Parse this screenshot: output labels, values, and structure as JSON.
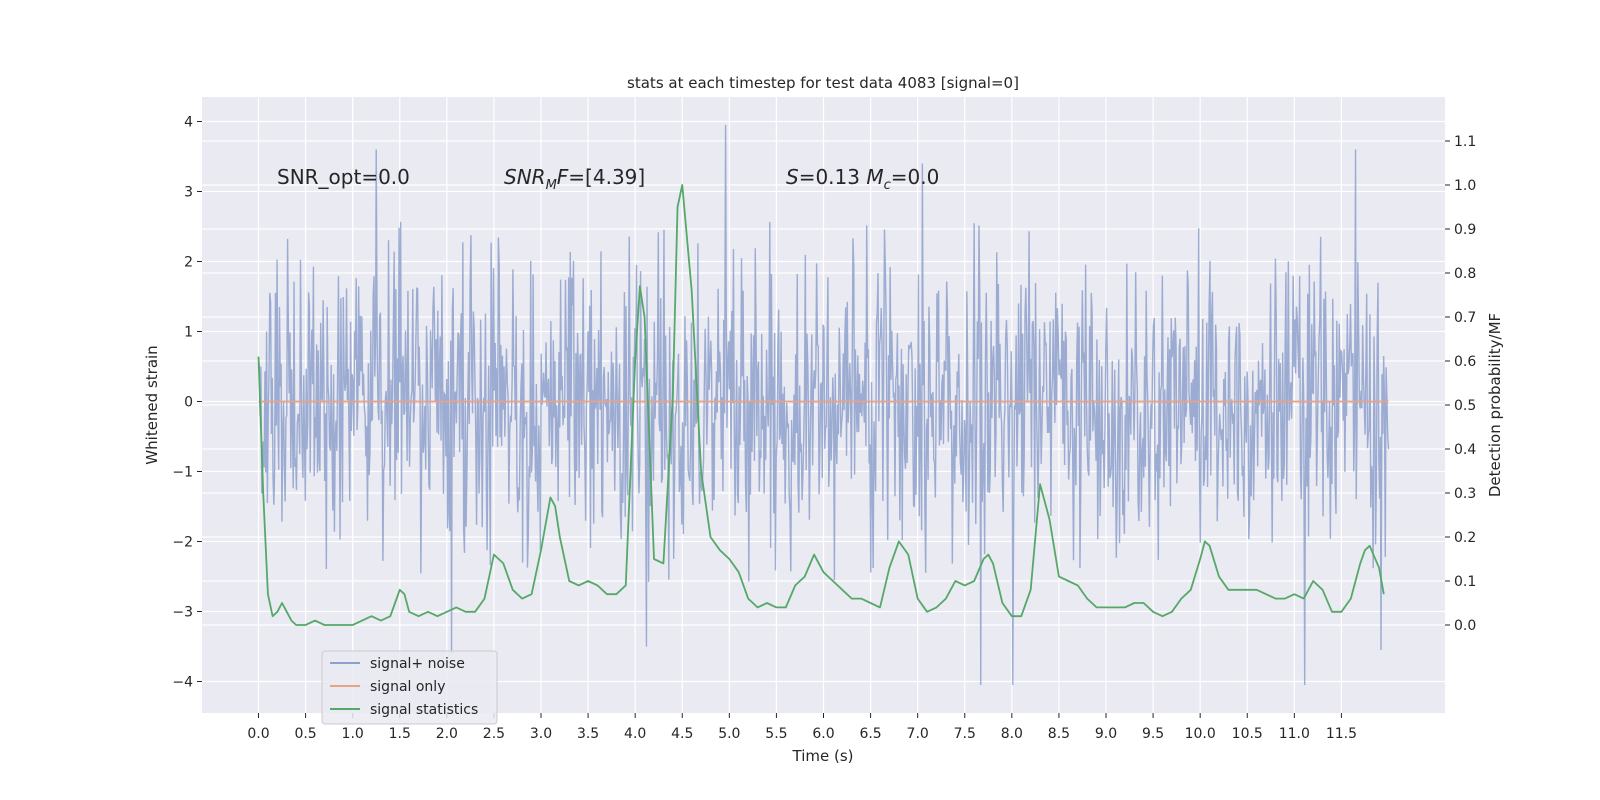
{
  "chart_data": {
    "type": "line",
    "title": "stats at each timestep for test data 4083 [signal=0]",
    "xlabel": "Time (s)",
    "ylabel_left": "Whitened strain",
    "ylabel_right": "Detection probability/MF",
    "xlim": [
      -0.6,
      12.6
    ],
    "ylim_left": [
      -4.45,
      4.35
    ],
    "ylim_right": [
      -0.2,
      1.2
    ],
    "x_ticks": [
      0.0,
      0.5,
      1.0,
      1.5,
      2.0,
      2.5,
      3.0,
      3.5,
      4.0,
      4.5,
      5.0,
      5.5,
      6.0,
      6.5,
      7.0,
      7.5,
      8.0,
      8.5,
      9.0,
      9.5,
      10.0,
      10.5,
      11.0,
      11.5
    ],
    "x_tick_labels": [
      "0.0",
      "0.5",
      "1.0",
      "1.5",
      "2.0",
      "2.5",
      "3.0",
      "3.5",
      "4.0",
      "4.5",
      "5.0",
      "5.5",
      "6.0",
      "6.5",
      "7.0",
      "7.5",
      "8.0",
      "8.5",
      "9.0",
      "9.5",
      "10.0",
      "10.5",
      "11.0",
      "11.5"
    ],
    "y_left_ticks": [
      -4,
      -3,
      -2,
      -1,
      0,
      1,
      2,
      3,
      4
    ],
    "y_left_tick_labels": [
      "−4",
      "−3",
      "−2",
      "−1",
      "0",
      "1",
      "2",
      "3",
      "4"
    ],
    "y_right_ticks": [
      0.0,
      0.1,
      0.2,
      0.3,
      0.4,
      0.5,
      0.6,
      0.7,
      0.8,
      0.9,
      1.0,
      1.1
    ],
    "y_right_tick_labels": [
      "0.0",
      "0.1",
      "0.2",
      "0.3",
      "0.4",
      "0.5",
      "0.6",
      "0.7",
      "0.8",
      "0.9",
      "1.0",
      "1.1"
    ],
    "grid": true,
    "legend_position": "bottom-left",
    "annotations": [
      {
        "id": "snr-opt",
        "text": "SNR_opt=0.0"
      },
      {
        "id": "snr-mf",
        "text": "SNR_MF=[4.39]"
      },
      {
        "id": "s-mc",
        "text": "S=0.13   M_c=0.0"
      }
    ],
    "series": [
      {
        "name": "signal+ noise",
        "axis": "left",
        "color": "#8da0cb",
        "description": "whitened strain, noise only",
        "x_range": [
          0.0,
          12.0
        ],
        "typical_envelope": [
          -2.6,
          2.6
        ],
        "peaks": [
          {
            "x": 1.25,
            "y": 3.6
          },
          {
            "x": 4.96,
            "y": 3.95
          },
          {
            "x": 7.05,
            "y": 3.4
          },
          {
            "x": 11.65,
            "y": 3.6
          },
          {
            "x": 2.05,
            "y": -3.6
          },
          {
            "x": 4.12,
            "y": -3.5
          },
          {
            "x": 7.67,
            "y": -4.05
          },
          {
            "x": 8.01,
            "y": -4.05
          },
          {
            "x": 11.11,
            "y": -4.05
          },
          {
            "x": 11.92,
            "y": -3.55
          }
        ]
      },
      {
        "name": "signal only",
        "axis": "left",
        "color": "#e8a387",
        "x": [
          0.0,
          12.0
        ],
        "y": [
          0.0,
          0.0
        ]
      },
      {
        "name": "signal statistics",
        "axis": "right",
        "color": "#55a868",
        "x": [
          0.0,
          0.05,
          0.1,
          0.15,
          0.2,
          0.25,
          0.3,
          0.35,
          0.4,
          0.45,
          0.5,
          0.6,
          0.7,
          0.8,
          0.9,
          1.0,
          1.1,
          1.2,
          1.3,
          1.4,
          1.5,
          1.55,
          1.6,
          1.7,
          1.8,
          1.9,
          2.0,
          2.1,
          2.2,
          2.3,
          2.4,
          2.45,
          2.5,
          2.6,
          2.7,
          2.8,
          2.9,
          3.0,
          3.1,
          3.15,
          3.2,
          3.3,
          3.4,
          3.5,
          3.6,
          3.7,
          3.8,
          3.9,
          4.0,
          4.05,
          4.1,
          4.2,
          4.3,
          4.4,
          4.45,
          4.5,
          4.6,
          4.7,
          4.8,
          4.9,
          5.0,
          5.1,
          5.2,
          5.3,
          5.4,
          5.5,
          5.6,
          5.7,
          5.8,
          5.9,
          6.0,
          6.1,
          6.2,
          6.3,
          6.4,
          6.5,
          6.6,
          6.7,
          6.8,
          6.9,
          7.0,
          7.1,
          7.2,
          7.3,
          7.4,
          7.5,
          7.6,
          7.7,
          7.75,
          7.8,
          7.9,
          8.0,
          8.1,
          8.2,
          8.3,
          8.4,
          8.5,
          8.6,
          8.7,
          8.8,
          8.9,
          9.0,
          9.1,
          9.2,
          9.3,
          9.4,
          9.5,
          9.6,
          9.7,
          9.8,
          9.9,
          10.0,
          10.05,
          10.1,
          10.2,
          10.3,
          10.4,
          10.5,
          10.6,
          10.7,
          10.8,
          10.9,
          11.0,
          11.1,
          11.2,
          11.3,
          11.4,
          11.5,
          11.6,
          11.7,
          11.75,
          11.8,
          11.9,
          11.95
        ],
        "y": [
          0.61,
          0.3,
          0.07,
          0.02,
          0.03,
          0.05,
          0.03,
          0.01,
          0.0,
          0.0,
          0.0,
          0.01,
          0.0,
          0.0,
          0.0,
          0.0,
          0.01,
          0.02,
          0.01,
          0.02,
          0.08,
          0.07,
          0.03,
          0.02,
          0.03,
          0.02,
          0.03,
          0.04,
          0.03,
          0.03,
          0.06,
          0.11,
          0.16,
          0.14,
          0.08,
          0.06,
          0.07,
          0.17,
          0.29,
          0.27,
          0.2,
          0.1,
          0.09,
          0.1,
          0.09,
          0.07,
          0.07,
          0.09,
          0.6,
          0.77,
          0.7,
          0.15,
          0.14,
          0.52,
          0.95,
          1.0,
          0.76,
          0.35,
          0.2,
          0.17,
          0.15,
          0.12,
          0.06,
          0.04,
          0.05,
          0.04,
          0.04,
          0.09,
          0.11,
          0.16,
          0.12,
          0.1,
          0.08,
          0.06,
          0.06,
          0.05,
          0.04,
          0.13,
          0.19,
          0.16,
          0.06,
          0.03,
          0.04,
          0.06,
          0.1,
          0.09,
          0.1,
          0.15,
          0.16,
          0.14,
          0.05,
          0.02,
          0.02,
          0.08,
          0.32,
          0.24,
          0.11,
          0.1,
          0.09,
          0.06,
          0.04,
          0.04,
          0.04,
          0.04,
          0.05,
          0.05,
          0.03,
          0.02,
          0.03,
          0.06,
          0.08,
          0.15,
          0.19,
          0.18,
          0.11,
          0.08,
          0.08,
          0.08,
          0.08,
          0.07,
          0.06,
          0.06,
          0.07,
          0.06,
          0.1,
          0.08,
          0.03,
          0.03,
          0.06,
          0.14,
          0.17,
          0.18,
          0.13,
          0.07
        ]
      }
    ]
  }
}
